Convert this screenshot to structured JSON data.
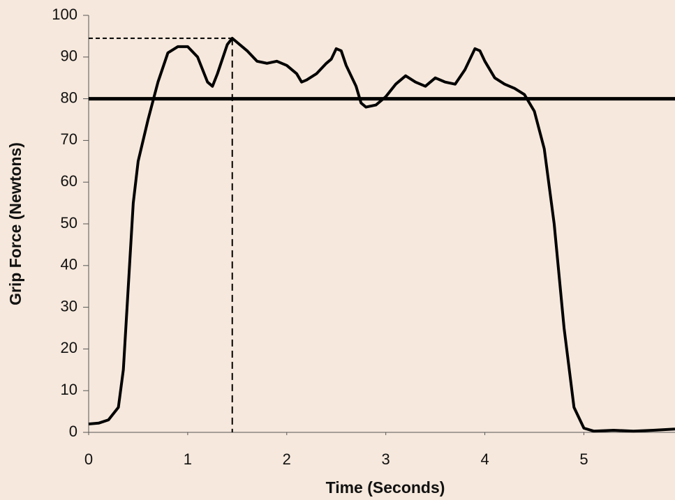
{
  "chart_data": {
    "type": "line",
    "x_label": "Time (Seconds)",
    "y_label": "Grip Force (Newtons)",
    "x": [
      0,
      0.1,
      0.2,
      0.3,
      0.35,
      0.4,
      0.45,
      0.5,
      0.6,
      0.7,
      0.8,
      0.9,
      1.0,
      1.1,
      1.2,
      1.25,
      1.3,
      1.4,
      1.45,
      1.5,
      1.6,
      1.7,
      1.8,
      1.9,
      2.0,
      2.1,
      2.15,
      2.2,
      2.3,
      2.4,
      2.45,
      2.5,
      2.55,
      2.6,
      2.7,
      2.75,
      2.8,
      2.9,
      3.0,
      3.1,
      3.2,
      3.3,
      3.4,
      3.5,
      3.6,
      3.7,
      3.8,
      3.9,
      3.95,
      4.0,
      4.1,
      4.2,
      4.3,
      4.4,
      4.5,
      4.6,
      4.7,
      4.8,
      4.9,
      5.0,
      5.1,
      5.3,
      5.5,
      5.7,
      5.92
    ],
    "series": [
      {
        "color": "#000000",
        "values": [
          2,
          2.2,
          3,
          6,
          15,
          35,
          55,
          65,
          75,
          84,
          91,
          92.5,
          92.5,
          90,
          84,
          83,
          86,
          93,
          94.5,
          93.5,
          91.5,
          89,
          88.5,
          89,
          88,
          86,
          84,
          84.5,
          86,
          88.5,
          89.5,
          92,
          91.5,
          88,
          83,
          79,
          78,
          78.5,
          80.5,
          83.5,
          85.5,
          84,
          83,
          85,
          84,
          83.5,
          87,
          92,
          91.5,
          89,
          85,
          83.5,
          82.5,
          81,
          77,
          68,
          50,
          25,
          6,
          1,
          0.3,
          0.5,
          0.3,
          0.5,
          0.8
        ]
      }
    ],
    "threshold": 80,
    "peak": {
      "x": 1.45,
      "y": 94.5
    },
    "xlim": [
      0,
      5.92
    ],
    "ylim": [
      0,
      100
    ],
    "xticks": [
      0,
      1,
      2,
      3,
      4,
      5
    ],
    "yticks": [
      0,
      10,
      20,
      30,
      40,
      50,
      60,
      70,
      80,
      90,
      100
    ]
  }
}
